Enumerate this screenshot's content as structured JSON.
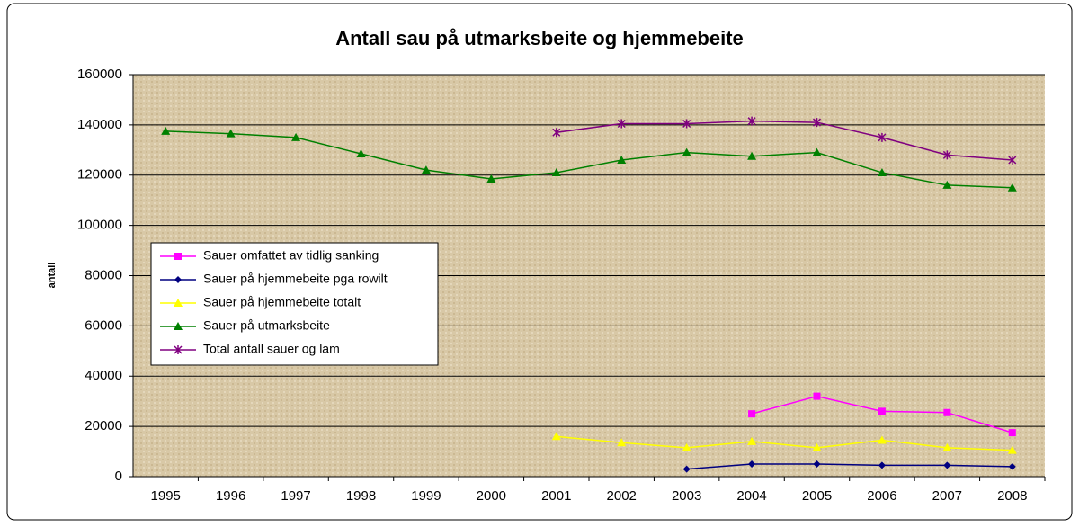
{
  "chart_data": {
    "type": "line",
    "title": "Antall sau på utmarksbeite og hjemmebeite",
    "y_label": "antall",
    "categories": [
      "1995",
      "1996",
      "1997",
      "1998",
      "1999",
      "2000",
      "2001",
      "2002",
      "2003",
      "2004",
      "2005",
      "2006",
      "2007",
      "2008"
    ],
    "ylim": [
      0,
      160000
    ],
    "yticks": [
      0,
      20000,
      40000,
      60000,
      80000,
      100000,
      120000,
      140000,
      160000
    ],
    "grid": true,
    "legend": "left",
    "series": [
      {
        "name": "Sauer omfattet av tidlig sanking",
        "color": "#ff00ff",
        "marker": "square",
        "values": [
          null,
          null,
          null,
          null,
          null,
          null,
          null,
          null,
          null,
          25000,
          32000,
          26000,
          25500,
          17500
        ]
      },
      {
        "name": "Sauer på hjemmebeite pga rowilt",
        "color": "#000080",
        "marker": "diamond",
        "values": [
          null,
          null,
          null,
          null,
          null,
          null,
          null,
          null,
          3000,
          5000,
          5000,
          4500,
          4500,
          4000
        ]
      },
      {
        "name": "Sauer på hjemmebeite totalt",
        "color": "#ffff00",
        "marker": "triangle",
        "values": [
          null,
          null,
          null,
          null,
          null,
          null,
          16000,
          13500,
          11500,
          14000,
          11500,
          14500,
          11500,
          10500
        ]
      },
      {
        "name": "Sauer på utmarksbeite",
        "color": "#008000",
        "marker": "triangle",
        "values": [
          137500,
          136500,
          135000,
          128500,
          122000,
          118500,
          121000,
          126000,
          129000,
          127500,
          129000,
          121000,
          116000,
          115000
        ]
      },
      {
        "name": "Total antall sauer og lam",
        "color": "#800080",
        "marker": "star",
        "values": [
          null,
          null,
          null,
          null,
          null,
          null,
          137000,
          140500,
          140500,
          141500,
          141000,
          135000,
          128000,
          126000
        ]
      }
    ]
  }
}
